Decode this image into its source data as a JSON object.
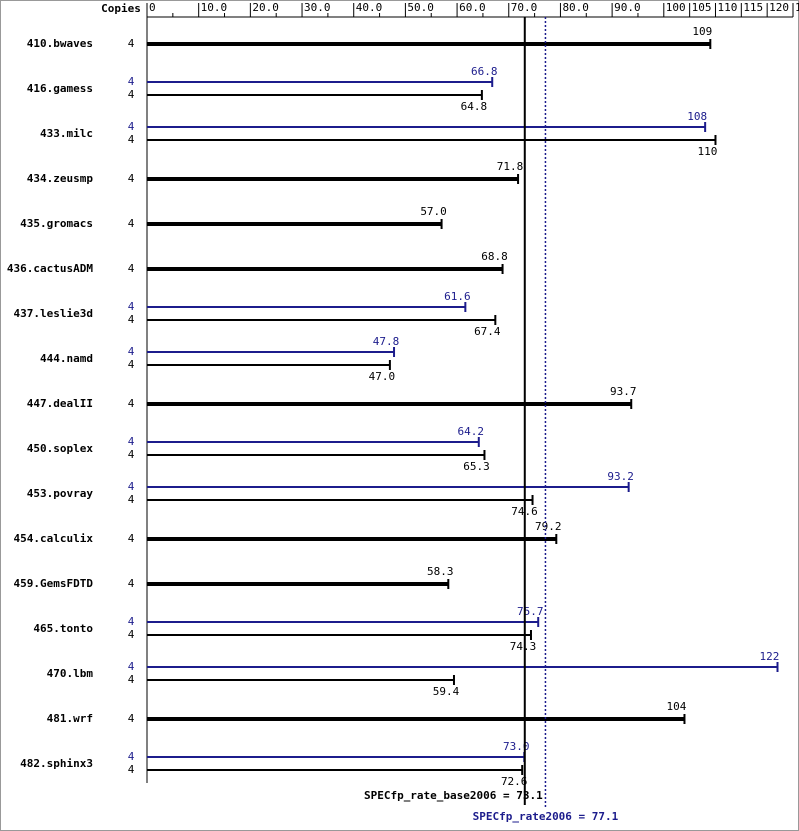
{
  "chart_data": {
    "type": "spec-bar",
    "copies_header": "Copies",
    "xlim": [
      0,
      125
    ],
    "xticks": [
      0,
      {
        "value": 10,
        "label": "10.0"
      },
      {
        "value": 20,
        "label": "20.0"
      },
      {
        "value": 30,
        "label": "30.0"
      },
      {
        "value": 40,
        "label": "40.0"
      },
      {
        "value": 50,
        "label": "50.0"
      },
      {
        "value": 60,
        "label": "60.0"
      },
      {
        "value": 70,
        "label": "70.0"
      },
      {
        "value": 80,
        "label": "80.0"
      },
      {
        "value": 90,
        "label": "90.0"
      },
      100,
      105,
      110,
      115,
      120,
      125
    ],
    "base_color": "#000000",
    "peak_color": "#1c1c8c",
    "benchmarks": [
      {
        "name": "410.bwaves",
        "base": {
          "copies": 4,
          "value": 109
        }
      },
      {
        "name": "416.gamess",
        "peak": {
          "copies": 4,
          "value": 66.8,
          "value_label": "66.8"
        },
        "base": {
          "copies": 4,
          "value": 64.8,
          "value_label": "64.8"
        }
      },
      {
        "name": "433.milc",
        "peak": {
          "copies": 4,
          "value": 108
        },
        "base": {
          "copies": 4,
          "value": 110
        }
      },
      {
        "name": "434.zeusmp",
        "base": {
          "copies": 4,
          "value": 71.8,
          "value_label": "71.8"
        }
      },
      {
        "name": "435.gromacs",
        "base": {
          "copies": 4,
          "value": 57,
          "value_label": "57.0"
        }
      },
      {
        "name": "436.cactusADM",
        "base": {
          "copies": 4,
          "value": 68.8,
          "value_label": "68.8"
        }
      },
      {
        "name": "437.leslie3d",
        "peak": {
          "copies": 4,
          "value": 61.6,
          "value_label": "61.6"
        },
        "base": {
          "copies": 4,
          "value": 67.4,
          "value_label": "67.4"
        }
      },
      {
        "name": "444.namd",
        "peak": {
          "copies": 4,
          "value": 47.8,
          "value_label": "47.8"
        },
        "base": {
          "copies": 4,
          "value": 47,
          "value_label": "47.0"
        }
      },
      {
        "name": "447.dealII",
        "base": {
          "copies": 4,
          "value": 93.7,
          "value_label": "93.7"
        }
      },
      {
        "name": "450.soplex",
        "peak": {
          "copies": 4,
          "value": 64.2,
          "value_label": "64.2"
        },
        "base": {
          "copies": 4,
          "value": 65.3,
          "value_label": "65.3"
        }
      },
      {
        "name": "453.povray",
        "peak": {
          "copies": 4,
          "value": 93.2,
          "value_label": "93.2"
        },
        "base": {
          "copies": 4,
          "value": 74.6,
          "value_label": "74.6"
        }
      },
      {
        "name": "454.calculix",
        "base": {
          "copies": 4,
          "value": 79.2,
          "value_label": "79.2"
        }
      },
      {
        "name": "459.GemsFDTD",
        "base": {
          "copies": 4,
          "value": 58.3,
          "value_label": "58.3"
        }
      },
      {
        "name": "465.tonto",
        "peak": {
          "copies": 4,
          "value": 75.7,
          "value_label": "75.7"
        },
        "base": {
          "copies": 4,
          "value": 74.3,
          "value_label": "74.3"
        }
      },
      {
        "name": "470.lbm",
        "peak": {
          "copies": 4,
          "value": 122
        },
        "base": {
          "copies": 4,
          "value": 59.4,
          "value_label": "59.4"
        }
      },
      {
        "name": "481.wrf",
        "base": {
          "copies": 4,
          "value": 104
        }
      },
      {
        "name": "482.sphinx3",
        "peak": {
          "copies": 4,
          "value": 73,
          "value_label": "73.0"
        },
        "base": {
          "copies": 4,
          "value": 72.6,
          "value_label": "72.6"
        }
      }
    ],
    "base_reference": {
      "value": 73.1,
      "label": "SPECfp_rate_base2006 = 73.1"
    },
    "peak_reference": {
      "value": 77.1,
      "label": "SPECfp_rate2006 = 77.1"
    }
  }
}
